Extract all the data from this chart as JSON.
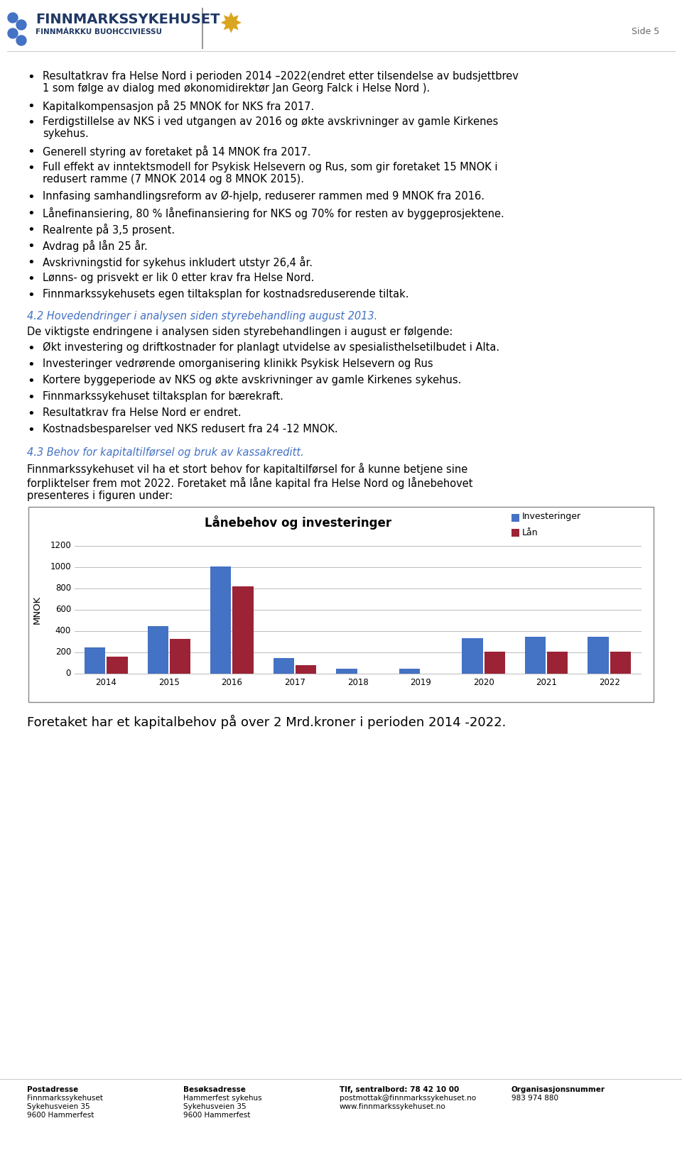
{
  "page_title": "Side 5",
  "logo_text_main": "FINNMARKSSYKEHUSET",
  "logo_text_sub": "FINNMÁRKKU BUOHCCIVIESSU",
  "bullet_points": [
    "Resultatkrav fra Helse Nord i perioden 2014 –2022(endret etter tilsendelse av budsjettbrev\n1 som følge av dialog med økonomidirektør Jan Georg Falck i Helse Nord ).",
    "Kapitalkompensasjon på 25 MNOK for NKS fra 2017.",
    "Ferdigstillelse av NKS i ved utgangen av 2016 og økte avskrivninger av gamle Kirkenes\nsykehus.",
    "Generell styring av foretaket på 14 MNOK fra 2017.",
    "Full effekt av inntektsmodell for Psykisk Helsevern og Rus, som gir foretaket 15 MNOK i\nredusert ramme (7 MNOK 2014 og 8 MNOK 2015).",
    "Innfasing samhandlingsreform av Ø-hjelp, reduserer rammen med 9 MNOK fra 2016.",
    "Lånefinansiering, 80 % lånefinansiering for NKS og 70% for resten av byggeprosjektene.",
    "Realrente på 3,5 prosent.",
    "Avdrag på lån 25 år.",
    "Avskrivningstid for sykehus inkludert utstyr 26,4 år.",
    "Lønns- og prisvekt er lik 0 etter krav fra Helse Nord.",
    "Finnmarkssykehusets egen tiltaksplan for kostnadsreduserende tiltak."
  ],
  "section_42_title": "4.2 Hovedendringer i analysen siden styrebehandling august 2013.",
  "section_42_intro": "De viktigste endringene i analysen siden styrebehandlingen i august er følgende:",
  "section_42_bullets": [
    "Økt investering og driftkostnader for planlagt utvidelse av spesialisthelsetilbudet i Alta.",
    "Investeringer vedrørende omorganisering klinikk Psykisk Helsevern og Rus",
    "Kortere byggeperiode av NKS og økte avskrivninger av gamle Kirkenes sykehus.",
    "Finnmarkssykehuset tiltaksplan for bærekraft.",
    "Resultatkrav fra Helse Nord er endret.",
    "Kostnadsbesparelser ved NKS redusert fra 24 -12 MNOK."
  ],
  "section_43_title": "4.3 Behov for kapitaltilførsel og bruk av kassakreditt.",
  "section_43_text": "Finnmarkssykehuset vil ha et stort behov for kapitaltilførsel for å kunne betjene sine\nforpliktelser frem mot 2022. Foretaket må låne kapital fra Helse Nord og lånebehovet\npresenteres i figuren under:",
  "chart_title": "Lånebehov og investeringer",
  "chart_ylabel": "MNOK",
  "chart_years": [
    "2014",
    "2015",
    "2016",
    "2017",
    "2018",
    "2019",
    "2020",
    "2021",
    "2022"
  ],
  "investeringer": [
    250,
    450,
    1005,
    145,
    45,
    45,
    335,
    350,
    350
  ],
  "lan": [
    160,
    330,
    820,
    80,
    0,
    0,
    210,
    210,
    210
  ],
  "bar_color_inv": "#4472C4",
  "bar_color_lan": "#9B2335",
  "chart_ylim": [
    0,
    1200
  ],
  "chart_yticks": [
    0,
    200,
    400,
    600,
    800,
    1000,
    1200
  ],
  "legend_inv": "Investeringer",
  "legend_lan": "Lån",
  "footer_text": "Foretaket har et kapitalbehov på over 2 Mrd.kroner i perioden 2014 -2022.",
  "footer_section": [
    [
      "Postadresse",
      "Finnmarkssykehuset",
      "Sykehusveien 35",
      "9600 Hammerfest"
    ],
    [
      "Besøksadresse",
      "Hammerfest sykehus",
      "Sykehusveien 35",
      "9600 Hammerfest"
    ],
    [
      "Tlf, sentralbord: 78 42 10 00",
      "postmottak@finnmarkssykehuset.no",
      "www.finnmarkssykehuset.no"
    ],
    [
      "Organisasjonsnummer",
      "983 974 880"
    ]
  ],
  "background_color": "#FFFFFF",
  "text_color": "#000000",
  "section_color": "#4472C4",
  "logo_color": "#1F3864",
  "grid_color": "#AAAAAA"
}
